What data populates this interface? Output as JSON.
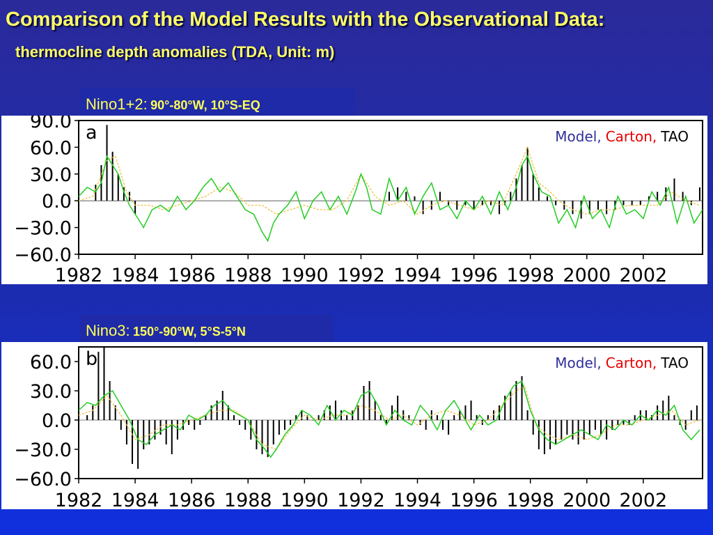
{
  "slide": {
    "title": "Comparison of the Model Results with the Observational Data:",
    "subtitle": "thermocline depth anomalies (TDA, Unit: m)"
  },
  "legend": [
    {
      "label": "Model,",
      "color": "#2f2f9c"
    },
    {
      "label": "Carton,",
      "color": "#e60000"
    },
    {
      "label": "TAO",
      "color": "#000000"
    }
  ],
  "colors": {
    "model_line": "#22cc22",
    "carton_line": "#f0c040",
    "tao_bars": "#000000",
    "label_text": "#ffff55",
    "label_bg": "#1e2aa8"
  },
  "chart_data": [
    {
      "type": "line",
      "panel_letter": "a",
      "region": "Nino1+2:",
      "region_coords": "90°-80°W, 10°S-EQ",
      "title": "",
      "xlabel": "",
      "ylabel": "",
      "xlim": [
        1982,
        2004.1
      ],
      "ylim": [
        -60,
        90
      ],
      "yticks": [
        "90.0",
        "60.0",
        "30.0",
        "0.0",
        "−30.0",
        "−60.0"
      ],
      "ytick_values": [
        90,
        60,
        30,
        0,
        -30,
        -60
      ],
      "xticks": [
        "1982",
        "1984",
        "1986",
        "1988",
        "1990",
        "1992",
        "1994",
        "1996",
        "1998",
        "2000",
        "2002"
      ],
      "xtick_values": [
        1982,
        1984,
        1986,
        1988,
        1990,
        1992,
        1994,
        1996,
        1998,
        2000,
        2002
      ],
      "grid": false,
      "legend_position": "top-right",
      "series": [
        {
          "name": "Model",
          "kind": "line",
          "x": [
            1982.0,
            1982.3,
            1982.6,
            1982.8,
            1983.0,
            1983.2,
            1983.4,
            1983.6,
            1983.8,
            1984.0,
            1984.3,
            1984.6,
            1984.9,
            1985.2,
            1985.5,
            1985.8,
            1986.1,
            1986.4,
            1986.7,
            1987.0,
            1987.3,
            1987.6,
            1987.9,
            1988.2,
            1988.5,
            1988.7,
            1988.9,
            1989.1,
            1989.4,
            1989.7,
            1990.0,
            1990.3,
            1990.6,
            1990.9,
            1991.2,
            1991.5,
            1991.8,
            1992.0,
            1992.2,
            1992.4,
            1992.7,
            1993.0,
            1993.3,
            1993.6,
            1993.9,
            1994.2,
            1994.5,
            1994.8,
            1995.1,
            1995.4,
            1995.7,
            1996.0,
            1996.3,
            1996.6,
            1996.9,
            1997.2,
            1997.5,
            1997.7,
            1997.9,
            1998.1,
            1998.4,
            1998.7,
            1999.0,
            1999.3,
            1999.6,
            1999.9,
            2000.2,
            2000.5,
            2000.8,
            2001.1,
            2001.4,
            2001.7,
            2002.0,
            2002.3,
            2002.6,
            2002.9,
            2003.2,
            2003.5,
            2003.8,
            2004.1
          ],
          "y": [
            5,
            15,
            10,
            20,
            50,
            40,
            30,
            10,
            -5,
            -15,
            -30,
            -10,
            -5,
            -12,
            5,
            -10,
            0,
            15,
            25,
            10,
            20,
            5,
            -10,
            -15,
            -35,
            -45,
            -25,
            -15,
            -5,
            10,
            -20,
            0,
            10,
            -10,
            5,
            -15,
            10,
            30,
            15,
            -10,
            -15,
            25,
            0,
            15,
            -15,
            5,
            20,
            -10,
            -5,
            -20,
            0,
            -10,
            5,
            -15,
            10,
            -10,
            15,
            40,
            50,
            30,
            10,
            5,
            -25,
            -10,
            -30,
            5,
            -20,
            -10,
            -30,
            5,
            -15,
            -10,
            -20,
            10,
            -5,
            15,
            -25,
            5,
            -25,
            -10
          ]
        },
        {
          "name": "Carton",
          "kind": "line",
          "x": [
            1982.0,
            1982.5,
            1983.0,
            1983.3,
            1983.7,
            1984.0,
            1984.5,
            1985.0,
            1985.5,
            1986.0,
            1986.5,
            1987.0,
            1987.5,
            1988.0,
            1988.5,
            1989.0,
            1989.5,
            1990.0,
            1990.5,
            1991.0,
            1991.5,
            1992.0,
            1992.5,
            1993.0,
            1993.5,
            1994.0,
            1994.5,
            1995.0,
            1995.5,
            1996.0,
            1996.5,
            1997.0,
            1997.5,
            1997.9,
            1998.3,
            1998.7,
            1999.0,
            1999.5,
            2000.0,
            2000.5,
            2001.0,
            2001.5,
            2002.0,
            2002.5,
            2003.0,
            2003.5,
            2004.0
          ],
          "y": [
            0,
            5,
            45,
            50,
            10,
            -5,
            -5,
            -10,
            -5,
            0,
            5,
            15,
            10,
            -5,
            -5,
            -15,
            -10,
            -5,
            -10,
            -10,
            0,
            30,
            5,
            -5,
            0,
            -15,
            -5,
            0,
            -5,
            -10,
            0,
            -5,
            30,
            60,
            20,
            10,
            0,
            -10,
            -15,
            -10,
            -10,
            -5,
            -5,
            -5,
            10,
            0,
            -5
          ]
        },
        {
          "name": "TAO",
          "kind": "bar",
          "x": [
            1982.6,
            1982.8,
            1983.0,
            1983.2,
            1983.4,
            1983.6,
            1983.8,
            1984.0,
            1993.0,
            1993.3,
            1993.6,
            1993.9,
            1994.2,
            1994.5,
            1994.8,
            1995.1,
            1995.4,
            1995.7,
            1996.0,
            1996.3,
            1996.6,
            1996.9,
            1997.1,
            1997.3,
            1997.5,
            1997.7,
            1997.9,
            1998.1,
            1998.3,
            1998.6,
            1998.9,
            1999.2,
            1999.5,
            1999.8,
            2000.1,
            2000.4,
            2000.7,
            2001.0,
            2001.3,
            2001.6,
            2001.9,
            2002.2,
            2002.5,
            2002.8,
            2003.1,
            2003.4,
            2003.7,
            2004.0
          ],
          "y": [
            18,
            40,
            85,
            55,
            30,
            15,
            10,
            -15,
            10,
            15,
            10,
            5,
            -15,
            -10,
            10,
            -5,
            -10,
            -5,
            -10,
            -5,
            -5,
            -15,
            -5,
            10,
            25,
            40,
            60,
            30,
            15,
            5,
            -5,
            -10,
            -15,
            -20,
            -15,
            -10,
            -15,
            -10,
            -5,
            -5,
            -5,
            5,
            10,
            15,
            25,
            10,
            -5,
            15
          ]
        }
      ]
    },
    {
      "type": "line",
      "panel_letter": "b",
      "region": "Nino3:",
      "region_coords": "150°-90°W, 5°S-5°N",
      "title": "",
      "xlabel": "",
      "ylabel": "",
      "xlim": [
        1982,
        2004.1
      ],
      "ylim": [
        -60,
        75
      ],
      "yticks": [
        "60.0",
        "30.0",
        "0.0",
        "−30.0",
        "−60.0"
      ],
      "ytick_values": [
        60,
        30,
        0,
        -30,
        -60
      ],
      "xticks": [
        "1982",
        "1984",
        "1986",
        "1988",
        "1990",
        "1992",
        "1994",
        "1996",
        "1998",
        "2000",
        "2002"
      ],
      "xtick_values": [
        1982,
        1984,
        1986,
        1988,
        1990,
        1992,
        1994,
        1996,
        1998,
        2000,
        2002
      ],
      "grid": false,
      "legend_position": "top-right",
      "series": [
        {
          "name": "Model",
          "kind": "line",
          "x": [
            1982.0,
            1982.3,
            1982.6,
            1982.9,
            1983.2,
            1983.5,
            1983.8,
            1984.1,
            1984.4,
            1984.7,
            1985.0,
            1985.3,
            1985.6,
            1985.9,
            1986.2,
            1986.5,
            1986.8,
            1987.1,
            1987.4,
            1987.7,
            1988.0,
            1988.3,
            1988.6,
            1988.8,
            1989.0,
            1989.3,
            1989.6,
            1989.9,
            1990.2,
            1990.5,
            1990.8,
            1991.1,
            1991.4,
            1991.7,
            1992.0,
            1992.3,
            1992.6,
            1992.9,
            1993.2,
            1993.5,
            1993.8,
            1994.1,
            1994.4,
            1994.7,
            1995.0,
            1995.3,
            1995.6,
            1995.9,
            1996.2,
            1996.5,
            1996.8,
            1997.1,
            1997.4,
            1997.7,
            1998.0,
            1998.3,
            1998.6,
            1998.9,
            1999.2,
            1999.5,
            1999.8,
            2000.1,
            2000.4,
            2000.7,
            2001.0,
            2001.3,
            2001.6,
            2001.9,
            2002.2,
            2002.5,
            2002.8,
            2003.1,
            2003.4,
            2003.7,
            2004.0
          ],
          "y": [
            10,
            18,
            15,
            25,
            30,
            15,
            0,
            -20,
            -25,
            -15,
            -10,
            -5,
            -10,
            5,
            0,
            5,
            15,
            20,
            10,
            5,
            0,
            -20,
            -30,
            -38,
            -30,
            -15,
            -5,
            10,
            5,
            -5,
            15,
            0,
            10,
            5,
            25,
            30,
            15,
            -5,
            10,
            0,
            -5,
            15,
            5,
            -10,
            10,
            20,
            5,
            -10,
            5,
            -5,
            0,
            20,
            35,
            40,
            10,
            -10,
            -20,
            -25,
            -20,
            -15,
            -10,
            -15,
            -20,
            -5,
            -10,
            0,
            -5,
            5,
            0,
            10,
            5,
            15,
            -10,
            -20,
            -10
          ]
        },
        {
          "name": "Carton",
          "kind": "line",
          "x": [
            1982.0,
            1982.5,
            1983.0,
            1983.5,
            1984.0,
            1984.5,
            1985.0,
            1985.5,
            1986.0,
            1986.5,
            1987.0,
            1987.5,
            1988.0,
            1988.5,
            1989.0,
            1989.5,
            1990.0,
            1990.5,
            1991.0,
            1991.5,
            1992.0,
            1992.5,
            1993.0,
            1993.5,
            1994.0,
            1994.5,
            1995.0,
            1995.5,
            1996.0,
            1996.5,
            1997.0,
            1997.5,
            1997.8,
            1998.2,
            1998.6,
            1999.0,
            1999.5,
            2000.0,
            2000.5,
            2001.0,
            2001.5,
            2002.0,
            2002.5,
            2003.0,
            2003.5,
            2004.0
          ],
          "y": [
            5,
            10,
            25,
            5,
            -20,
            -15,
            -5,
            -5,
            0,
            5,
            10,
            10,
            0,
            -25,
            -30,
            -10,
            5,
            0,
            5,
            5,
            15,
            10,
            0,
            5,
            -5,
            5,
            10,
            5,
            -5,
            0,
            15,
            30,
            35,
            -5,
            -15,
            -20,
            -15,
            -20,
            -15,
            -5,
            -5,
            0,
            5,
            10,
            -5,
            0
          ]
        },
        {
          "name": "TAO",
          "kind": "bar",
          "x": [
            1982.3,
            1982.5,
            1982.7,
            1982.9,
            1983.1,
            1983.3,
            1983.5,
            1983.7,
            1983.9,
            1984.1,
            1984.3,
            1984.5,
            1984.7,
            1984.9,
            1985.1,
            1985.3,
            1985.5,
            1985.7,
            1985.9,
            1986.1,
            1986.3,
            1986.5,
            1986.7,
            1986.9,
            1987.1,
            1987.3,
            1987.5,
            1987.7,
            1987.9,
            1988.1,
            1988.3,
            1988.5,
            1988.7,
            1988.9,
            1989.1,
            1989.3,
            1989.5,
            1989.7,
            1989.9,
            1990.1,
            1990.3,
            1990.5,
            1990.7,
            1990.9,
            1991.1,
            1991.3,
            1991.5,
            1991.7,
            1991.9,
            1992.1,
            1992.3,
            1992.5,
            1992.7,
            1992.9,
            1993.1,
            1993.3,
            1993.5,
            1993.7,
            1993.9,
            1994.1,
            1994.3,
            1994.5,
            1994.7,
            1994.9,
            1995.1,
            1995.3,
            1995.5,
            1995.7,
            1995.9,
            1996.1,
            1996.3,
            1996.5,
            1996.7,
            1996.9,
            1997.1,
            1997.3,
            1997.5,
            1997.7,
            1997.9,
            1998.1,
            1998.3,
            1998.5,
            1998.7,
            1998.9,
            1999.1,
            1999.3,
            1999.5,
            1999.7,
            1999.9,
            2000.1,
            2000.3,
            2000.5,
            2000.7,
            2000.9,
            2001.1,
            2001.3,
            2001.5,
            2001.7,
            2001.9,
            2002.1,
            2002.3,
            2002.5,
            2002.7,
            2002.9,
            2003.1,
            2003.3,
            2003.5,
            2003.7,
            2003.9
          ],
          "y": [
            5,
            15,
            70,
            80,
            40,
            15,
            -10,
            -25,
            -45,
            -50,
            -30,
            -25,
            -20,
            -15,
            -25,
            -35,
            -20,
            -10,
            -5,
            -10,
            -5,
            5,
            15,
            20,
            30,
            15,
            5,
            -5,
            -10,
            -20,
            -30,
            -35,
            -38,
            -25,
            -15,
            -10,
            -5,
            5,
            10,
            5,
            0,
            5,
            10,
            15,
            20,
            10,
            5,
            10,
            15,
            35,
            40,
            20,
            5,
            -5,
            15,
            25,
            10,
            5,
            0,
            -5,
            -10,
            10,
            5,
            -10,
            -15,
            5,
            10,
            15,
            20,
            5,
            -5,
            5,
            10,
            15,
            25,
            30,
            40,
            45,
            10,
            -15,
            -30,
            -35,
            -30,
            -25,
            -20,
            -15,
            -20,
            -25,
            -20,
            -15,
            -10,
            -15,
            -20,
            -10,
            -5,
            -5,
            -5,
            5,
            10,
            10,
            5,
            15,
            20,
            25,
            5,
            -5,
            -10,
            10,
            15
          ]
        }
      ]
    }
  ]
}
